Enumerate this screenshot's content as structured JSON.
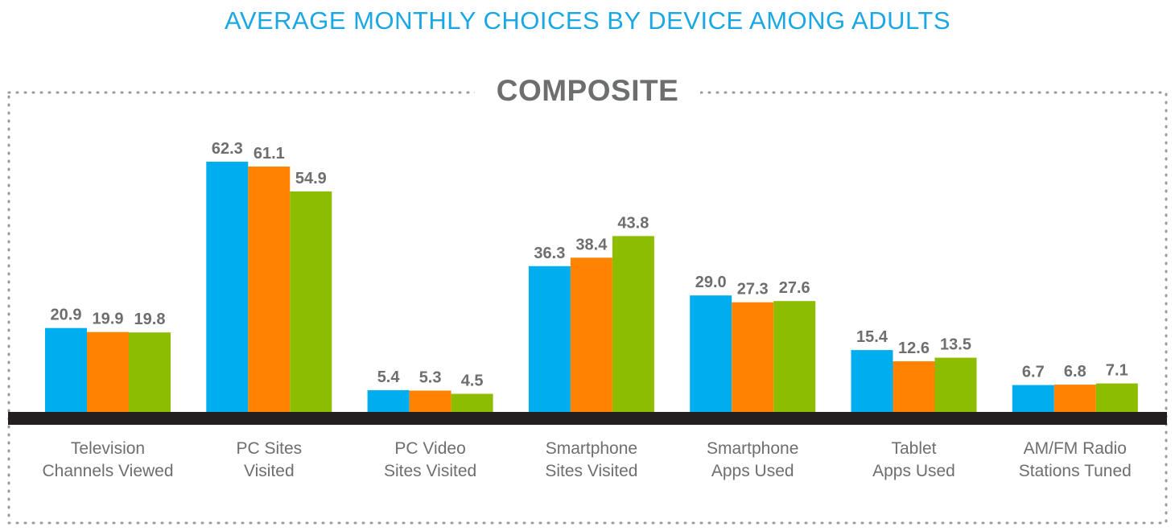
{
  "title": "AVERAGE MONTHLY CHOICES BY DEVICE AMONG ADULTS",
  "subtitle": "COMPOSITE",
  "colors": {
    "title": "#1aa7e3",
    "subtitle": "#6d6e70",
    "labels": "#6d6e70",
    "baseline": "#231f20",
    "border": "#9a9a9a"
  },
  "chart_data": {
    "type": "bar",
    "title": "AVERAGE MONTHLY CHOICES BY DEVICE AMONG ADULTS",
    "subtitle": "COMPOSITE",
    "categories": [
      [
        "Television",
        "Channels Viewed"
      ],
      [
        "PC Sites",
        "Visited"
      ],
      [
        "PC Video",
        "Sites Visited"
      ],
      [
        "Smartphone",
        "Sites Visited"
      ],
      [
        "Smartphone",
        "Apps Used"
      ],
      [
        "Tablet",
        "Apps Used"
      ],
      [
        "AM/FM Radio",
        "Stations Tuned"
      ]
    ],
    "series": [
      {
        "color": "#00aeef",
        "values": [
          20.9,
          62.3,
          5.4,
          36.3,
          29.0,
          15.4,
          6.7
        ]
      },
      {
        "color": "#ff8200",
        "values": [
          19.9,
          61.1,
          5.3,
          38.4,
          27.3,
          12.6,
          6.8
        ]
      },
      {
        "color": "#8cbd00",
        "values": [
          19.8,
          54.9,
          4.5,
          43.8,
          27.6,
          13.5,
          7.1
        ]
      }
    ],
    "value_labels": [
      [
        "20.9",
        "62.3",
        "5.4",
        "36.3",
        "29.0",
        "15.4",
        "6.7"
      ],
      [
        "19.9",
        "61.1",
        "5.3",
        "38.4",
        "27.3",
        "12.6",
        "6.8"
      ],
      [
        "19.8",
        "54.9",
        "4.5",
        "43.8",
        "27.6",
        "13.5",
        "7.1"
      ]
    ],
    "ylim": [
      0,
      62.3
    ],
    "grid": false,
    "legend": "none",
    "xlabel": "",
    "ylabel": ""
  }
}
